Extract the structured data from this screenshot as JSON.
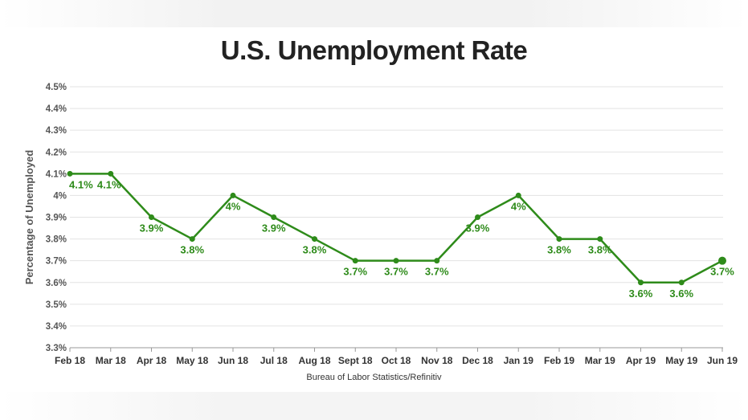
{
  "chart_data": {
    "type": "line",
    "title": "U.S. Unemployment Rate",
    "ylabel": "Percentage of Unemployed",
    "xlabel": "Bureau of Labor Statistics/Refinitiv",
    "categories": [
      "Feb 18",
      "Mar 18",
      "Apr 18",
      "May 18",
      "Jun 18",
      "Jul 18",
      "Aug 18",
      "Sept 18",
      "Oct 18",
      "Nov 18",
      "Dec 18",
      "Jan 19",
      "Feb 19",
      "Mar 19",
      "Apr 19",
      "May 19",
      "Jun 19"
    ],
    "values": [
      4.1,
      4.1,
      3.9,
      3.8,
      4.0,
      3.9,
      3.8,
      3.7,
      3.7,
      3.7,
      3.9,
      4.0,
      3.8,
      3.8,
      3.6,
      3.6,
      3.7
    ],
    "data_labels": [
      "4.1%",
      "4.1%",
      "3.9%",
      "3.8%",
      "4%",
      "3.9%",
      "3.8%",
      "3.7%",
      "3.7%",
      "3.7%",
      "3.9%",
      "4%",
      "3.8%",
      "3.8%",
      "3.6%",
      "3.6%",
      "3.7%"
    ],
    "ylim": [
      3.3,
      4.5
    ],
    "y_ticks": [
      {
        "value": 4.5,
        "label": "4.5%"
      },
      {
        "value": 4.4,
        "label": "4.4%"
      },
      {
        "value": 4.3,
        "label": "4.3%"
      },
      {
        "value": 4.2,
        "label": "4.2%"
      },
      {
        "value": 4.1,
        "label": "4.1%"
      },
      {
        "value": 4.0,
        "label": "4%"
      },
      {
        "value": 3.9,
        "label": "3.9%"
      },
      {
        "value": 3.8,
        "label": "3.8%"
      },
      {
        "value": 3.7,
        "label": "3.7%"
      },
      {
        "value": 3.6,
        "label": "3.6%"
      },
      {
        "value": 3.5,
        "label": "3.5%"
      },
      {
        "value": 3.4,
        "label": "3.4%"
      },
      {
        "value": 3.3,
        "label": "3.3%"
      }
    ],
    "grid": true,
    "legend": "none",
    "line_color": "#2e8b1a"
  }
}
